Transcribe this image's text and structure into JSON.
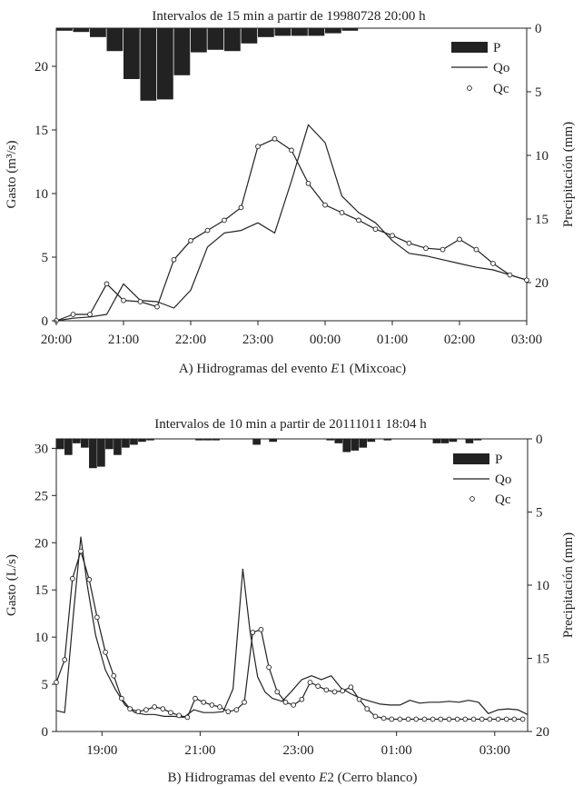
{
  "chart_data": [
    {
      "type": "line",
      "title": "Intervalos de 15 min a partir de 19980728  20:00 h",
      "caption_prefix": "A) Hidrogramas del evento ",
      "caption_event": "E",
      "caption_suffix": "1 (Mixcoac)",
      "ylabel": "Gasto (m³/s)",
      "ylabel2": "Precipitación (mm)",
      "ylim": [
        0,
        23
      ],
      "yticks": [
        "0",
        "5",
        "10",
        "15",
        "20"
      ],
      "y2lim": [
        0,
        23
      ],
      "y2ticks": [
        "0",
        "5",
        "10",
        "15",
        "20"
      ],
      "xlim": [
        0,
        7
      ],
      "xtick_labels": [
        "20:00",
        "21:00",
        "22:00",
        "23:00",
        "00:00",
        "01:00",
        "02:00",
        "03:00"
      ],
      "legend": {
        "p": "P",
        "qo": "Qo",
        "qc": "Qc"
      },
      "series": [
        {
          "name": "P",
          "kind": "bar",
          "dt": 0.25,
          "values": [
            0.2,
            0.3,
            0.7,
            1.8,
            4.0,
            5.7,
            5.6,
            3.7,
            1.9,
            1.7,
            1.8,
            1.2,
            0.7,
            0.6,
            0.6,
            0.6,
            0.4,
            0.2
          ]
        },
        {
          "name": "Qo",
          "kind": "line",
          "x": [
            0,
            0.25,
            0.5,
            0.75,
            1.0,
            1.25,
            1.5,
            1.75,
            2.0,
            2.25,
            2.5,
            2.75,
            3.0,
            3.25,
            3.5,
            3.75,
            4.0,
            4.25,
            4.5,
            4.75,
            5.0,
            5.25,
            5.5,
            5.75,
            6.0,
            6.25,
            6.5,
            6.75,
            7.0
          ],
          "values": [
            0,
            0.2,
            0.3,
            0.5,
            2.9,
            1.6,
            1.5,
            1.0,
            2.4,
            5.8,
            6.9,
            7.1,
            7.7,
            6.9,
            11.0,
            15.4,
            14.0,
            9.8,
            8.5,
            7.7,
            6.3,
            5.3,
            5.1,
            4.8,
            4.5,
            4.2,
            4.0,
            3.6,
            3.2
          ]
        },
        {
          "name": "Qc",
          "kind": "points",
          "x": [
            0,
            0.25,
            0.5,
            0.75,
            1.0,
            1.25,
            1.5,
            1.75,
            2.0,
            2.25,
            2.5,
            2.75,
            3.0,
            3.25,
            3.5,
            3.75,
            4.0,
            4.25,
            4.5,
            4.75,
            5.0,
            5.25,
            5.5,
            5.75,
            6.0,
            6.25,
            6.5,
            6.75,
            7.0
          ],
          "values": [
            0,
            0.5,
            0.5,
            2.9,
            1.6,
            1.5,
            1.1,
            4.8,
            6.3,
            7.1,
            7.9,
            8.9,
            13.7,
            14.3,
            13.4,
            10.8,
            9.1,
            8.5,
            7.9,
            7.2,
            6.7,
            6.1,
            5.7,
            5.6,
            6.4,
            5.6,
            4.5,
            3.6,
            3.2
          ]
        }
      ]
    },
    {
      "type": "line",
      "title": "Intervalos de 10 min a partir de 20111011  18:04 h",
      "caption_prefix": "B) Hidrogramas del evento ",
      "caption_event": "E",
      "caption_suffix": "2 (Cerro blanco)",
      "ylabel": "Gasto (L/s)",
      "ylabel2": "Precipitación (mm)",
      "ylim": [
        0,
        31
      ],
      "yticks": [
        "0",
        "5",
        "10",
        "15",
        "20",
        "25",
        "30"
      ],
      "y2lim": [
        0,
        20
      ],
      "y2ticks": [
        "0",
        "5",
        "10",
        "15",
        "20"
      ],
      "xlim": [
        0,
        9.6
      ],
      "xtick_labels": [
        "19:00",
        "21:00",
        "23:00",
        "01:00",
        "03:00"
      ],
      "xtick_hours": [
        0.93,
        2.93,
        4.93,
        6.93,
        8.93
      ],
      "legend": {
        "p": "P",
        "qo": "Qo",
        "qc": "Qc"
      },
      "series": [
        {
          "name": "P",
          "kind": "bar",
          "dt": 0.1667,
          "values": [
            0.7,
            1.1,
            0.3,
            0.6,
            2.0,
            1.9,
            0.7,
            1.1,
            0.6,
            0.4,
            0.2,
            0.1,
            0,
            0,
            0,
            0,
            0,
            0.1,
            0.1,
            0.1,
            0,
            0,
            0,
            0,
            0.4,
            0,
            0.2,
            0,
            0,
            0,
            0,
            0,
            0,
            0.1,
            0.3,
            0.9,
            0.8,
            0.6,
            0.2,
            0,
            0.1,
            0,
            0,
            0,
            0,
            0,
            0.3,
            0.3,
            0.2,
            0,
            0.3,
            0.1,
            0,
            0,
            0,
            0,
            0,
            0,
            0,
            0,
            0,
            0,
            0,
            0.2,
            0,
            0,
            0,
            0,
            0,
            0,
            0,
            0,
            0,
            0,
            0,
            0,
            0,
            0,
            0,
            0,
            0,
            0,
            0.1,
            0,
            0.1,
            0,
            0,
            0,
            0,
            0
          ]
        },
        {
          "name": "Qo",
          "kind": "line",
          "x": [
            0,
            0.17,
            0.35,
            0.5,
            0.63,
            0.8,
            1.0,
            1.2,
            1.4,
            1.6,
            1.8,
            2.0,
            2.2,
            2.4,
            2.6,
            2.8,
            3.0,
            3.2,
            3.4,
            3.6,
            3.8,
            3.95,
            4.1,
            4.25,
            4.4,
            4.6,
            4.8,
            5.0,
            5.2,
            5.4,
            5.6,
            5.8,
            6.0,
            6.2,
            6.4,
            6.6,
            6.8,
            7.0,
            7.2,
            7.4,
            7.6,
            7.8,
            8.0,
            8.2,
            8.4,
            8.6,
            8.8,
            9.0,
            9.2,
            9.4,
            9.6
          ],
          "values": [
            2.2,
            2.0,
            12.5,
            20.6,
            15.5,
            10.2,
            6.5,
            4.5,
            2.8,
            2.0,
            1.8,
            1.8,
            1.6,
            1.6,
            1.5,
            2.3,
            2.0,
            2.0,
            2.1,
            4.5,
            17.2,
            10.5,
            5.8,
            4.2,
            3.5,
            3.2,
            4.3,
            5.5,
            5.9,
            5.5,
            5.9,
            4.6,
            4.0,
            3.5,
            3.2,
            2.9,
            2.8,
            2.8,
            3.3,
            3.0,
            3.1,
            3.1,
            3.2,
            3.1,
            3.3,
            3.1,
            1.9,
            2.3,
            2.4,
            2.3,
            1.8
          ]
        },
        {
          "name": "Qc",
          "kind": "points",
          "x": [
            0,
            0.17,
            0.33,
            0.5,
            0.67,
            0.83,
            1.0,
            1.17,
            1.33,
            1.5,
            1.67,
            1.83,
            2.0,
            2.17,
            2.33,
            2.5,
            2.67,
            2.83,
            3.0,
            3.17,
            3.33,
            3.5,
            3.67,
            3.83,
            4.0,
            4.17,
            4.33,
            4.5,
            4.67,
            4.83,
            5.0,
            5.17,
            5.33,
            5.5,
            5.67,
            5.83,
            6.0,
            6.17,
            6.33,
            6.5,
            6.67,
            6.83,
            7.0,
            7.17,
            7.33,
            7.5,
            7.67,
            7.83,
            8.0,
            8.17,
            8.33,
            8.5,
            8.67,
            8.83,
            9.0,
            9.17,
            9.33,
            9.5
          ],
          "values": [
            5.2,
            7.6,
            16.2,
            19.1,
            16.1,
            12.1,
            8.4,
            5.9,
            3.5,
            2.4,
            2.1,
            2.3,
            2.6,
            2.4,
            2.0,
            1.7,
            1.5,
            3.5,
            3.1,
            2.8,
            2.6,
            2.1,
            2.3,
            3.1,
            10.5,
            10.8,
            6.8,
            4.2,
            3.1,
            2.8,
            3.4,
            5.2,
            4.8,
            4.4,
            4.2,
            4.3,
            4.7,
            3.4,
            2.4,
            1.6,
            1.4,
            1.3,
            1.3,
            1.3,
            1.3,
            1.3,
            1.3,
            1.3,
            1.3,
            1.3,
            1.3,
            1.3,
            1.3,
            1.3,
            1.3,
            1.3,
            1.3,
            1.3
          ]
        }
      ]
    }
  ]
}
